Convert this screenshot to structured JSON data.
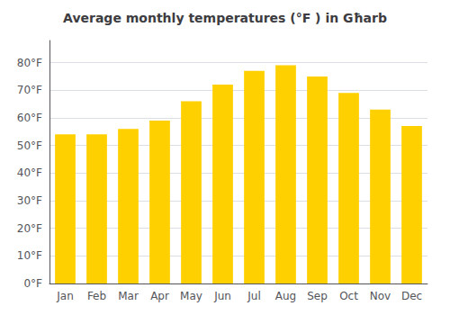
{
  "chart_data": {
    "type": "bar",
    "title": "Average monthly temperatures (°F ) in Għarb",
    "categories": [
      "Jan",
      "Feb",
      "Mar",
      "Apr",
      "May",
      "Jun",
      "Jul",
      "Aug",
      "Sep",
      "Oct",
      "Nov",
      "Dec"
    ],
    "values": [
      54,
      54,
      56,
      59,
      66,
      72,
      77,
      79,
      75,
      69,
      63,
      57
    ],
    "color": "#FFD000",
    "ylim": [
      0,
      88
    ],
    "yticks": [
      {
        "value": 0,
        "label": "0°F"
      },
      {
        "value": 10,
        "label": "10°F"
      },
      {
        "value": 20,
        "label": "20°F"
      },
      {
        "value": 30,
        "label": "30°F"
      },
      {
        "value": 40,
        "label": "40°F"
      },
      {
        "value": 50,
        "label": "50°F"
      },
      {
        "value": 60,
        "label": "60°F"
      },
      {
        "value": 70,
        "label": "70°F"
      },
      {
        "value": 80,
        "label": "80°F"
      }
    ],
    "grid": true
  }
}
